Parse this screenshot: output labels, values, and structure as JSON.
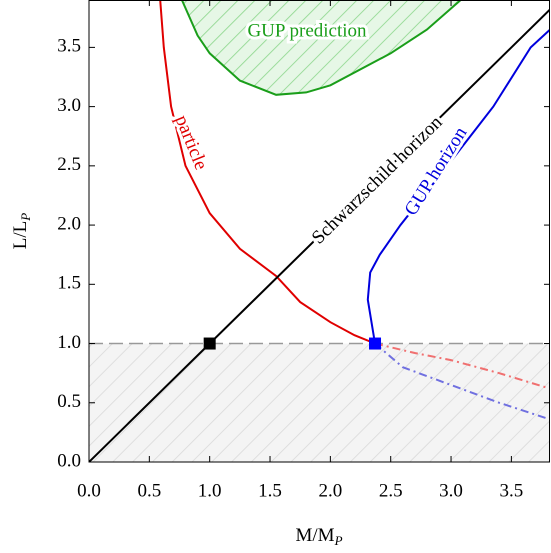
{
  "chart_data": {
    "type": "line",
    "x_label": {
      "main": "M/M",
      "sub": "P"
    },
    "y_label": {
      "main": "L/L",
      "sub": "P"
    },
    "xlim": [
      0,
      3.82
    ],
    "ylim": [
      0,
      3.9
    ],
    "xticks": [
      {
        "value": 0,
        "label": "0.0"
      },
      {
        "value": 0.5,
        "label": "0.5"
      },
      {
        "value": 1,
        "label": "1.0"
      },
      {
        "value": 1.5,
        "label": "1.5"
      },
      {
        "value": 2,
        "label": "2.0"
      },
      {
        "value": 2.5,
        "label": "2.5"
      },
      {
        "value": 3,
        "label": "3.0"
      },
      {
        "value": 3.5,
        "label": "3.5"
      }
    ],
    "yticks": [
      {
        "value": 0,
        "label": "0.0"
      },
      {
        "value": 0.5,
        "label": "0.5"
      },
      {
        "value": 1,
        "label": "1.0"
      },
      {
        "value": 1.5,
        "label": "1.5"
      },
      {
        "value": 2,
        "label": "2.0"
      },
      {
        "value": 2.5,
        "label": "2.5"
      },
      {
        "value": 3,
        "label": "3.0"
      },
      {
        "value": 3.5,
        "label": "3.5"
      }
    ],
    "shaded_region": {
      "ylim": [
        0,
        1
      ],
      "color": "#999999"
    },
    "series": [
      {
        "name": "GUP prediction",
        "color": "#1a9e1a",
        "style": "solid",
        "fill": "above",
        "x": [
          0.77,
          0.9,
          1.0,
          1.25,
          1.55,
          1.8,
          2.0,
          2.5,
          2.8,
          3.08
        ],
        "y": [
          3.9,
          3.6,
          3.45,
          3.22,
          3.1,
          3.12,
          3.18,
          3.45,
          3.65,
          3.9
        ]
      },
      {
        "name": "particle",
        "color": "#e00000",
        "style": "solid",
        "x": [
          0.59,
          0.62,
          0.68,
          0.8,
          1.0,
          1.25,
          1.55,
          1.75,
          2.0,
          2.2,
          2.37
        ],
        "y": [
          3.9,
          3.5,
          3.0,
          2.5,
          2.1,
          1.8,
          1.57,
          1.35,
          1.18,
          1.07,
          1.0
        ]
      },
      {
        "name": "Schwarzschild horizon",
        "color": "#000000",
        "style": "solid",
        "x": [
          0,
          3.82
        ],
        "y": [
          0,
          3.82
        ]
      },
      {
        "name": "GUP horizon",
        "color": "#0000dd",
        "style": "solid",
        "x": [
          2.37,
          2.31,
          2.33,
          2.41,
          2.58,
          2.97,
          3.35,
          3.66,
          3.82
        ],
        "y": [
          1.0,
          1.37,
          1.6,
          1.75,
          2.0,
          2.5,
          3.0,
          3.5,
          3.65
        ]
      },
      {
        "name": null,
        "color": "#f07070",
        "style": "dashdot",
        "x": [
          2.37,
          2.7,
          3.0,
          3.4,
          3.82
        ],
        "y": [
          1.0,
          0.92,
          0.86,
          0.75,
          0.62
        ]
      },
      {
        "name": null,
        "color": "#7070e0",
        "style": "dashdot",
        "x": [
          2.37,
          2.6,
          3.0,
          3.4,
          3.82
        ],
        "y": [
          1.0,
          0.8,
          0.65,
          0.5,
          0.36
        ]
      },
      {
        "name": null,
        "color": "#000000",
        "style": "marker",
        "x": [
          1.0
        ],
        "y": [
          1.0
        ]
      },
      {
        "name": null,
        "color": "#0000ff",
        "style": "marker",
        "x": [
          2.37
        ],
        "y": [
          1.0
        ]
      }
    ]
  }
}
